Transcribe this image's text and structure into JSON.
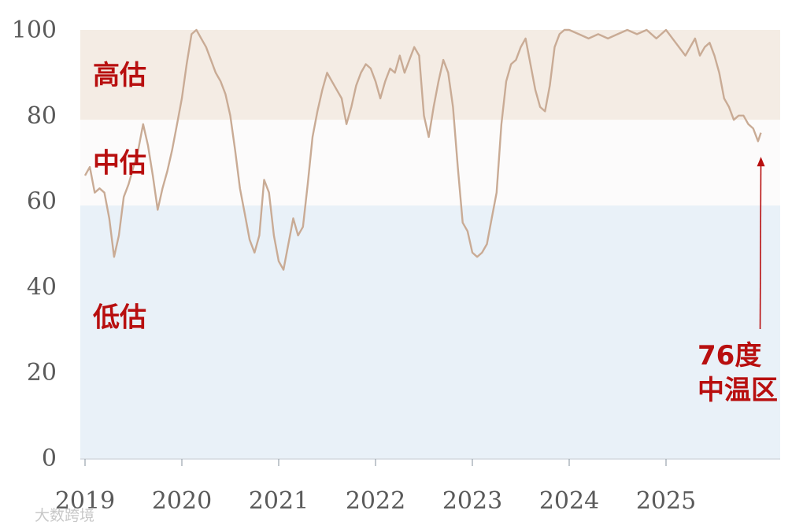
{
  "chart_data": {
    "type": "line",
    "title": "",
    "xlabel": "",
    "ylabel": "",
    "x_range": [
      2019.0,
      2026.25
    ],
    "ylim": [
      0,
      100
    ],
    "y_ticks": [
      "0",
      "20",
      "40",
      "60",
      "80",
      "100"
    ],
    "x_ticks": [
      "2019",
      "2020",
      "2021",
      "2022",
      "2023",
      "2024",
      "2025"
    ],
    "grid": false,
    "bands": [
      {
        "label": "高估",
        "from": 79,
        "to": 100,
        "color": "#f4ece4"
      },
      {
        "label": "中估",
        "from": 59,
        "to": 79,
        "color": "#fcfbfb"
      },
      {
        "label": "低估",
        "from": 0,
        "to": 59,
        "color": "#e9f1f8"
      }
    ],
    "series": [
      {
        "color": "#c9ab95",
        "points": [
          [
            2019.0,
            66
          ],
          [
            2019.05,
            68
          ],
          [
            2019.1,
            62
          ],
          [
            2019.15,
            63
          ],
          [
            2019.2,
            62
          ],
          [
            2019.25,
            56
          ],
          [
            2019.3,
            47
          ],
          [
            2019.35,
            52
          ],
          [
            2019.4,
            61
          ],
          [
            2019.45,
            64
          ],
          [
            2019.5,
            68
          ],
          [
            2019.55,
            72
          ],
          [
            2019.6,
            78
          ],
          [
            2019.65,
            73
          ],
          [
            2019.7,
            66
          ],
          [
            2019.75,
            58
          ],
          [
            2019.8,
            63
          ],
          [
            2019.85,
            67
          ],
          [
            2019.9,
            72
          ],
          [
            2019.95,
            78
          ],
          [
            2020.0,
            84
          ],
          [
            2020.05,
            92
          ],
          [
            2020.1,
            99
          ],
          [
            2020.15,
            100
          ],
          [
            2020.2,
            98
          ],
          [
            2020.25,
            96
          ],
          [
            2020.3,
            93
          ],
          [
            2020.35,
            90
          ],
          [
            2020.4,
            88
          ],
          [
            2020.45,
            85
          ],
          [
            2020.5,
            80
          ],
          [
            2020.55,
            72
          ],
          [
            2020.6,
            63
          ],
          [
            2020.65,
            57
          ],
          [
            2020.7,
            51
          ],
          [
            2020.75,
            48
          ],
          [
            2020.8,
            52
          ],
          [
            2020.85,
            65
          ],
          [
            2020.9,
            62
          ],
          [
            2020.95,
            52
          ],
          [
            2021.0,
            46
          ],
          [
            2021.05,
            44
          ],
          [
            2021.1,
            50
          ],
          [
            2021.15,
            56
          ],
          [
            2021.2,
            52
          ],
          [
            2021.25,
            54
          ],
          [
            2021.3,
            64
          ],
          [
            2021.35,
            75
          ],
          [
            2021.4,
            81
          ],
          [
            2021.45,
            86
          ],
          [
            2021.5,
            90
          ],
          [
            2021.55,
            88
          ],
          [
            2021.6,
            86
          ],
          [
            2021.65,
            84
          ],
          [
            2021.7,
            78
          ],
          [
            2021.75,
            82
          ],
          [
            2021.8,
            87
          ],
          [
            2021.85,
            90
          ],
          [
            2021.9,
            92
          ],
          [
            2021.95,
            91
          ],
          [
            2022.0,
            88
          ],
          [
            2022.05,
            84
          ],
          [
            2022.1,
            88
          ],
          [
            2022.15,
            91
          ],
          [
            2022.2,
            90
          ],
          [
            2022.25,
            94
          ],
          [
            2022.3,
            90
          ],
          [
            2022.35,
            93
          ],
          [
            2022.4,
            96
          ],
          [
            2022.45,
            94
          ],
          [
            2022.5,
            80
          ],
          [
            2022.55,
            75
          ],
          [
            2022.6,
            82
          ],
          [
            2022.65,
            88
          ],
          [
            2022.7,
            93
          ],
          [
            2022.75,
            90
          ],
          [
            2022.8,
            82
          ],
          [
            2022.85,
            68
          ],
          [
            2022.9,
            55
          ],
          [
            2022.95,
            53
          ],
          [
            2023.0,
            48
          ],
          [
            2023.05,
            47
          ],
          [
            2023.1,
            48
          ],
          [
            2023.15,
            50
          ],
          [
            2023.2,
            56
          ],
          [
            2023.25,
            62
          ],
          [
            2023.3,
            78
          ],
          [
            2023.35,
            88
          ],
          [
            2023.4,
            92
          ],
          [
            2023.45,
            93
          ],
          [
            2023.5,
            96
          ],
          [
            2023.55,
            98
          ],
          [
            2023.6,
            92
          ],
          [
            2023.65,
            86
          ],
          [
            2023.7,
            82
          ],
          [
            2023.75,
            81
          ],
          [
            2023.8,
            87
          ],
          [
            2023.85,
            96
          ],
          [
            2023.9,
            99
          ],
          [
            2023.95,
            100
          ],
          [
            2024.0,
            100
          ],
          [
            2024.1,
            99
          ],
          [
            2024.2,
            98
          ],
          [
            2024.3,
            99
          ],
          [
            2024.4,
            98
          ],
          [
            2024.5,
            99
          ],
          [
            2024.6,
            100
          ],
          [
            2024.7,
            99
          ],
          [
            2024.8,
            100
          ],
          [
            2024.9,
            98
          ],
          [
            2025.0,
            100
          ],
          [
            2025.1,
            97
          ],
          [
            2025.2,
            94
          ],
          [
            2025.3,
            98
          ],
          [
            2025.35,
            94
          ],
          [
            2025.4,
            96
          ],
          [
            2025.45,
            97
          ],
          [
            2025.5,
            94
          ],
          [
            2025.55,
            90
          ],
          [
            2025.6,
            84
          ],
          [
            2025.65,
            82
          ],
          [
            2025.7,
            79
          ],
          [
            2025.75,
            80
          ],
          [
            2025.8,
            80
          ],
          [
            2025.85,
            78
          ],
          [
            2025.9,
            77
          ],
          [
            2025.95,
            74
          ],
          [
            2025.98,
            76
          ]
        ]
      }
    ],
    "annotation": {
      "text_line1": "76度",
      "text_line2": "中温区",
      "target": [
        2025.98,
        70
      ]
    }
  },
  "watermark": "大数跨境"
}
